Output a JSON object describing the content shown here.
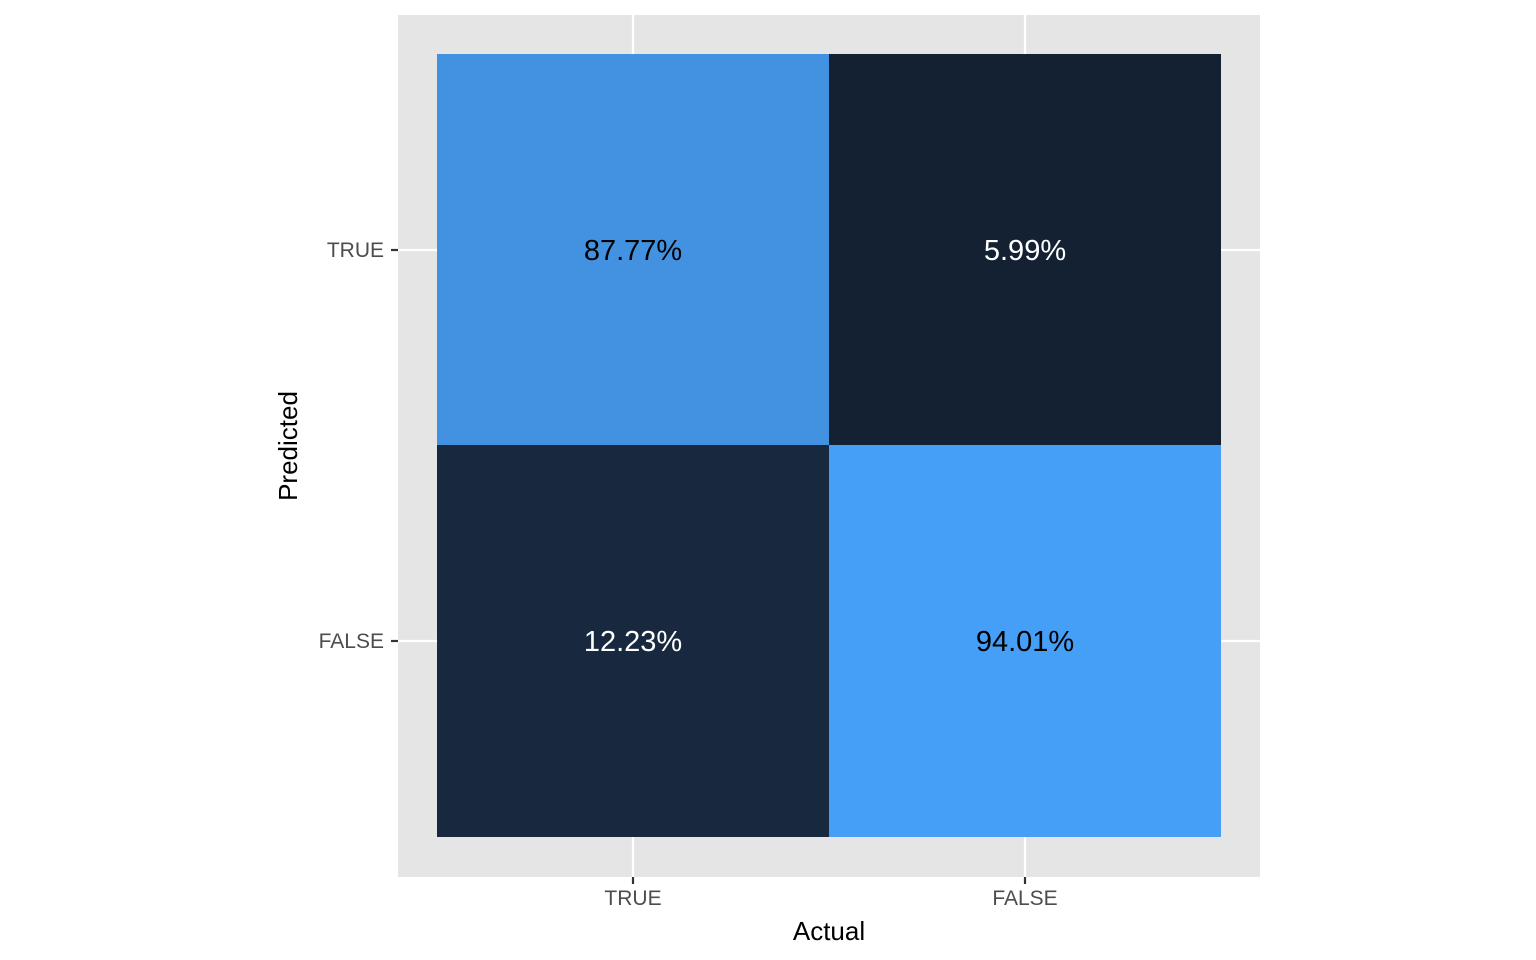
{
  "chart_data": {
    "type": "heatmap",
    "x_categories": [
      "TRUE",
      "FALSE"
    ],
    "y_categories": [
      "TRUE",
      "FALSE"
    ],
    "xlabel": "Actual",
    "ylabel": "Predicted",
    "cells": [
      {
        "x": "TRUE",
        "y": "TRUE",
        "value": 87.77,
        "label": "87.77%",
        "fill": "#4392e2",
        "text_color": "#000000"
      },
      {
        "x": "FALSE",
        "y": "TRUE",
        "value": 5.99,
        "label": "5.99%",
        "fill": "#132133",
        "text_color": "#ffffff"
      },
      {
        "x": "TRUE",
        "y": "FALSE",
        "value": 12.23,
        "label": "12.23%",
        "fill": "#17283f",
        "text_color": "#ffffff"
      },
      {
        "x": "FALSE",
        "y": "FALSE",
        "value": 94.01,
        "label": "94.01%",
        "fill": "#469ff6",
        "text_color": "#000000"
      }
    ],
    "grid": true,
    "panel_background": "#e5e5e5",
    "grid_color": "#ffffff"
  }
}
